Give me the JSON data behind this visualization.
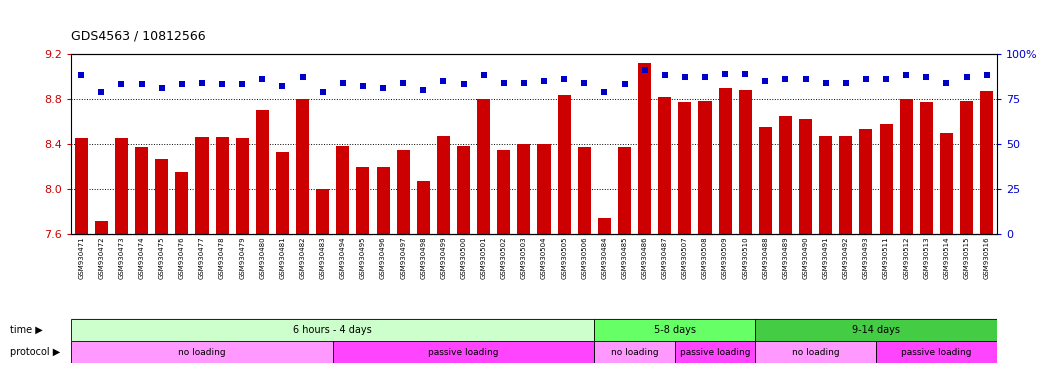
{
  "title": "GDS4563 / 10812566",
  "samples": [
    "GSM930471",
    "GSM930472",
    "GSM930473",
    "GSM930474",
    "GSM930475",
    "GSM930476",
    "GSM930477",
    "GSM930478",
    "GSM930479",
    "GSM930480",
    "GSM930481",
    "GSM930482",
    "GSM930483",
    "GSM930494",
    "GSM930495",
    "GSM930496",
    "GSM930497",
    "GSM930498",
    "GSM930499",
    "GSM930500",
    "GSM930501",
    "GSM930502",
    "GSM930503",
    "GSM930504",
    "GSM930505",
    "GSM930506",
    "GSM930484",
    "GSM930485",
    "GSM930486",
    "GSM930487",
    "GSM930507",
    "GSM930508",
    "GSM930509",
    "GSM930510",
    "GSM930488",
    "GSM930489",
    "GSM930490",
    "GSM930491",
    "GSM930492",
    "GSM930493",
    "GSM930511",
    "GSM930512",
    "GSM930513",
    "GSM930514",
    "GSM930515",
    "GSM930516"
  ],
  "bar_values": [
    8.45,
    7.72,
    8.45,
    8.37,
    8.27,
    8.15,
    8.46,
    8.46,
    8.45,
    8.7,
    8.33,
    8.8,
    8.0,
    8.38,
    8.2,
    8.2,
    8.35,
    8.07,
    8.47,
    8.38,
    8.8,
    8.35,
    8.4,
    8.4,
    8.83,
    8.37,
    7.74,
    8.37,
    9.12,
    8.82,
    8.77,
    8.78,
    8.9,
    8.88,
    8.55,
    8.65,
    8.62,
    8.47,
    8.47,
    8.53,
    8.58,
    8.8,
    8.77,
    8.5,
    8.78,
    8.87
  ],
  "dot_values": [
    88,
    79,
    83,
    83,
    81,
    83,
    84,
    83,
    83,
    86,
    82,
    87,
    79,
    84,
    82,
    81,
    84,
    80,
    85,
    83,
    88,
    84,
    84,
    85,
    86,
    84,
    79,
    83,
    91,
    88,
    87,
    87,
    89,
    89,
    85,
    86,
    86,
    84,
    84,
    86,
    86,
    88,
    87,
    84,
    87,
    88
  ],
  "ylim": [
    7.6,
    9.2
  ],
  "y2lim": [
    0,
    100
  ],
  "y_ticks": [
    7.6,
    8.0,
    8.4,
    8.8,
    9.2
  ],
  "y2_ticks": [
    0,
    25,
    50,
    75,
    100
  ],
  "bar_color": "#CC0000",
  "dot_color": "#0000CC",
  "xlabel_bg": "#CCCCCC",
  "time_groups": [
    {
      "label": "6 hours - 4 days",
      "start": 0,
      "end": 26,
      "color": "#CCFFCC"
    },
    {
      "label": "5-8 days",
      "start": 26,
      "end": 34,
      "color": "#66FF66"
    },
    {
      "label": "9-14 days",
      "start": 34,
      "end": 46,
      "color": "#44CC44"
    }
  ],
  "protocol_groups": [
    {
      "label": "no loading",
      "start": 0,
      "end": 13,
      "color": "#FF99FF"
    },
    {
      "label": "passive loading",
      "start": 13,
      "end": 26,
      "color": "#FF44FF"
    },
    {
      "label": "no loading",
      "start": 26,
      "end": 30,
      "color": "#FF99FF"
    },
    {
      "label": "passive loading",
      "start": 30,
      "end": 34,
      "color": "#FF44FF"
    },
    {
      "label": "no loading",
      "start": 34,
      "end": 40,
      "color": "#FF99FF"
    },
    {
      "label": "passive loading",
      "start": 40,
      "end": 46,
      "color": "#FF44FF"
    }
  ]
}
